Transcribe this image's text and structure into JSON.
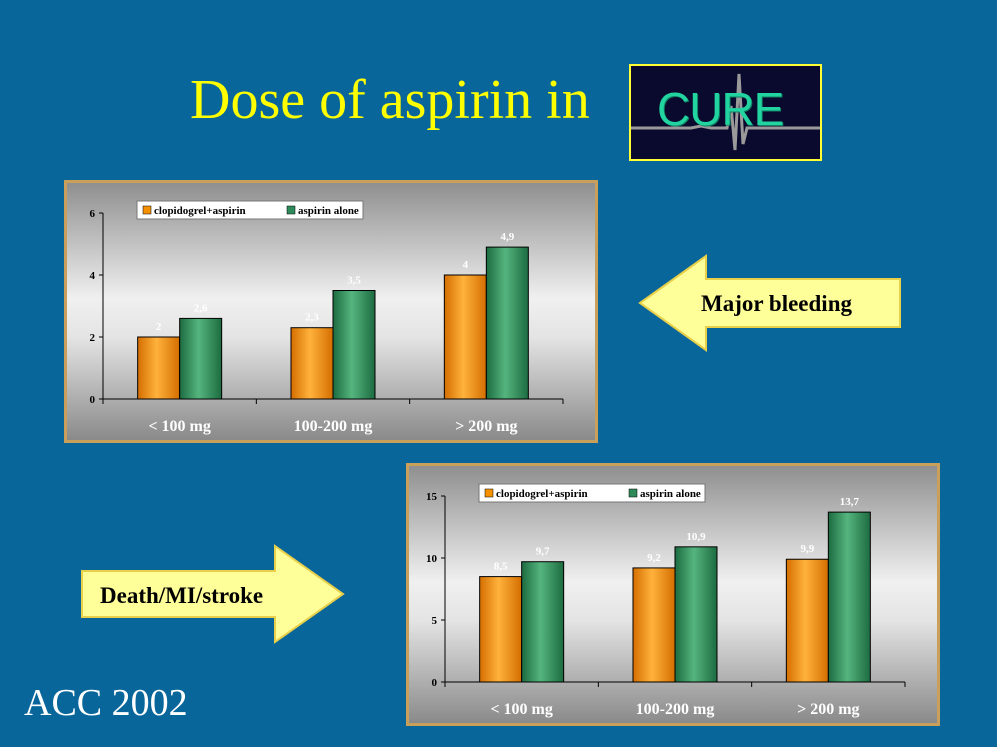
{
  "slide": {
    "title": "Dose of aspirin in",
    "logo_text": "CURE",
    "footer": "ACC 2002",
    "arrow_bleeding": "Major bleeding",
    "arrow_death": "Death/MI/stroke"
  },
  "colors": {
    "background": "#09669a",
    "title": "#ffff00",
    "clopidogrel": "#f59100",
    "aspirin": "#2e8a58",
    "panel_border": "#c8a05a",
    "arrow_fill": "#ffff99"
  },
  "chart_data": [
    {
      "type": "bar",
      "categories": [
        "< 100 mg",
        "100-200 mg",
        "> 200 mg"
      ],
      "series": [
        {
          "name": "clopidogrel+aspirin",
          "values": [
            2,
            2.3,
            4
          ],
          "labels": [
            "2",
            "2,3",
            "4"
          ]
        },
        {
          "name": "aspirin alone",
          "values": [
            2.6,
            3.5,
            4.9
          ],
          "labels": [
            "2,6",
            "3,5",
            "4,9"
          ]
        }
      ],
      "ylim": [
        0,
        6
      ],
      "yticks": [
        0,
        2,
        4,
        6
      ],
      "legend": "top-left",
      "grid": false
    },
    {
      "type": "bar",
      "categories": [
        "< 100 mg",
        "100-200 mg",
        "> 200 mg"
      ],
      "series": [
        {
          "name": "clopidogrel+aspirin",
          "values": [
            8.5,
            9.2,
            9.9
          ],
          "labels": [
            "8,5",
            "9,2",
            "9,9"
          ]
        },
        {
          "name": "aspirin alone",
          "values": [
            9.7,
            10.9,
            13.7
          ],
          "labels": [
            "9,7",
            "10,9",
            "13,7"
          ]
        }
      ],
      "ylim": [
        0,
        15
      ],
      "yticks": [
        0,
        5,
        10,
        15
      ],
      "legend": "top-left",
      "grid": false
    }
  ]
}
